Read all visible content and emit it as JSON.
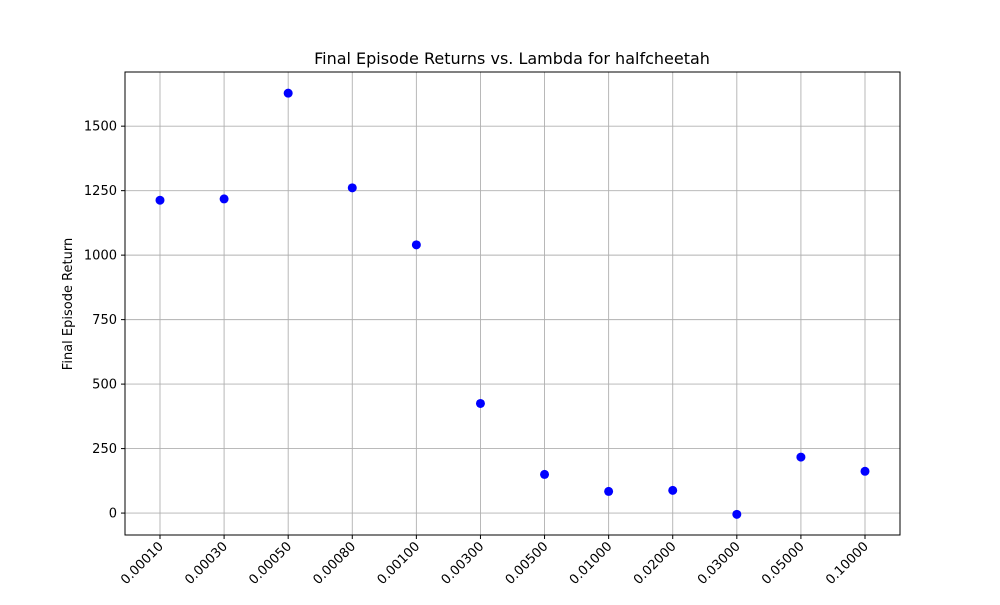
{
  "chart_data": {
    "type": "scatter",
    "title": "Final Episode Returns vs. Lambda for halfcheetah",
    "xlabel": "",
    "ylabel": "Final Episode Return",
    "categories": [
      "0.00010",
      "0.00030",
      "0.00050",
      "0.00080",
      "0.00100",
      "0.00300",
      "0.00500",
      "0.01000",
      "0.02000",
      "0.03000",
      "0.05000",
      "0.10000"
    ],
    "values": [
      1213,
      1218,
      1628,
      1261,
      1040,
      425,
      150,
      84,
      88,
      -5,
      217,
      162
    ],
    "yticks": [
      0,
      250,
      500,
      750,
      1000,
      1250,
      1500
    ],
    "ylim": [
      -85,
      1710
    ],
    "grid": true,
    "marker_color": "#0000ff"
  }
}
